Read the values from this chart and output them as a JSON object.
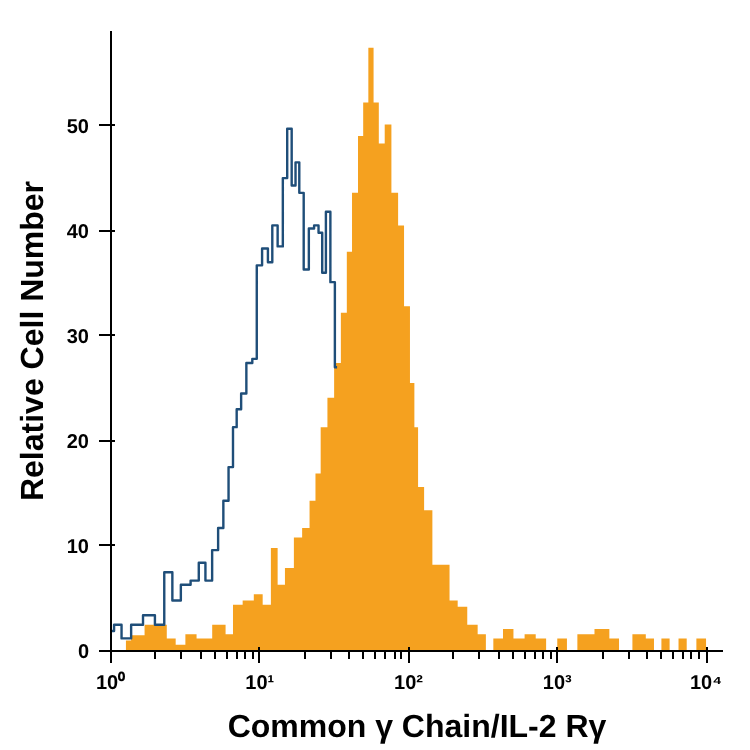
{
  "chart_data": {
    "type": "area",
    "xlabel": "Common γ Chain/IL-2 Rγ",
    "ylabel": "Relative Cell Number",
    "log": "x",
    "grid": false,
    "xlim": [
      1,
      13000
    ],
    "xticks": [
      {
        "value": 1,
        "label": "10⁰"
      },
      {
        "value": 10,
        "label": "10¹"
      },
      {
        "value": 100,
        "label": "10²"
      },
      {
        "value": 1000,
        "label": "10³"
      },
      {
        "value": 10000,
        "label": "10⁴"
      }
    ],
    "ylim": [
      0,
      59
    ],
    "yticks": [
      0,
      10,
      20,
      30,
      40,
      50
    ],
    "series": [
      {
        "color": "#f5a11f",
        "x": [
          1.26,
          1.48,
          1.91,
          2.24,
          2.51,
          2.95,
          3.39,
          4.17,
          5.5,
          6.31,
          6.92,
          8.51,
          9.77,
          11.2,
          12.6,
          13.8,
          15.8,
          18.2,
          20.4,
          22.9,
          24.5,
          26.9,
          30.2,
          33.1,
          37.2,
          39.8,
          43.7,
          47.9,
          51.3,
          56.2,
          60.3,
          66.1,
          72.4,
          81.3,
          89.1,
          97.7,
          107,
          112,
          120,
          135,
          155,
          178,
          200,
          229,
          269,
          316,
          347,
          398,
          468,
          550,
          661,
          776,
          912,
          1096,
          1230,
          1514,
          2089,
          2399,
          2818,
          3631,
          4266,
          4677,
          5370,
          6026,
          7079,
          7762,
          9550,
          10470
        ],
        "values": [
          1,
          1.5,
          2.5,
          2.5,
          1.2,
          0.6,
          1.6,
          1.2,
          2.5,
          1.6,
          4.4,
          4.8,
          5.4,
          4.4,
          9.8,
          6.3,
          7.9,
          10.8,
          11.7,
          14.3,
          16.9,
          21.3,
          24.1,
          27.4,
          32.2,
          38,
          43.6,
          49,
          52.2,
          57.4,
          52.2,
          48.3,
          50.1,
          43.6,
          40.5,
          32.8,
          25.5,
          21.3,
          15.6,
          13.4,
          8.2,
          8.2,
          4.8,
          4.2,
          2.5,
          1.6,
          0,
          1.2,
          2.1,
          1.2,
          1.6,
          1.2,
          0,
          1.2,
          0,
          1.6,
          2.1,
          1.2,
          0,
          1.6,
          1.2,
          0,
          1.2,
          0,
          1.2,
          0,
          1.2,
          0
        ]
      },
      {
        "type": "step",
        "color": "#1f4e79",
        "x": [
          1.0,
          1.1,
          1.26,
          1.48,
          1.82,
          2.14,
          2.43,
          2.75,
          3.16,
          3.72,
          4.07,
          4.57,
          5.01,
          5.5,
          5.89,
          6.46,
          6.76,
          7.24,
          7.76,
          8.51,
          9.33,
          9.77,
          11.0,
          11.7,
          12.6,
          13.8,
          14.8,
          15.8,
          17.0,
          17.8,
          19.1,
          20.4,
          22.4,
          24.0,
          25.7,
          26.9,
          28.8,
          30.9,
          33.1
        ],
        "values": [
          1.9,
          2.5,
          1.2,
          2.5,
          3.4,
          2.5,
          7.5,
          4.8,
          6.3,
          6.7,
          8.4,
          6.7,
          9.6,
          11.7,
          14.3,
          17.5,
          21.3,
          23,
          24.5,
          27.4,
          27.8,
          36.7,
          38.3,
          37,
          40.5,
          38.5,
          45,
          49.7,
          44.3,
          46.5,
          43.6,
          36.3,
          40.2,
          40.5,
          39.8,
          36,
          41.8,
          35.1,
          27
        ]
      }
    ]
  }
}
